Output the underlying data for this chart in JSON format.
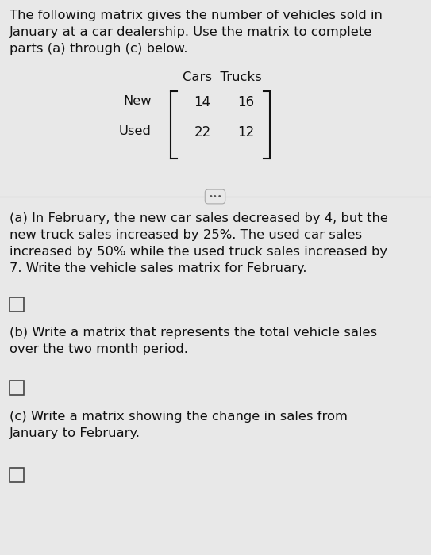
{
  "bg_color": "#e8e8e8",
  "text_color": "#111111",
  "intro_text": "The following matrix gives the number of vehicles sold in\nJanuary at a car dealership. Use the matrix to complete\nparts (a) through (c) below.",
  "col_labels": "Cars  Trucks",
  "row_label_new": "New",
  "row_label_used": "Used",
  "matrix_values": [
    [
      14,
      16
    ],
    [
      22,
      12
    ]
  ],
  "part_a_text": "(a) In February, the new car sales decreased by 4, but the\nnew truck sales increased by 25%. The used car sales\nincreased by 50% while the used truck sales increased by\n7. Write the vehicle sales matrix for February.",
  "part_b_text": "(b) Write a matrix that represents the total vehicle sales\nover the two month period.",
  "part_c_text": "(c) Write a matrix showing the change in sales from\nJanuary to February.",
  "font_size_main": 11.8,
  "font_size_matrix": 12,
  "font_size_labels": 11.8
}
